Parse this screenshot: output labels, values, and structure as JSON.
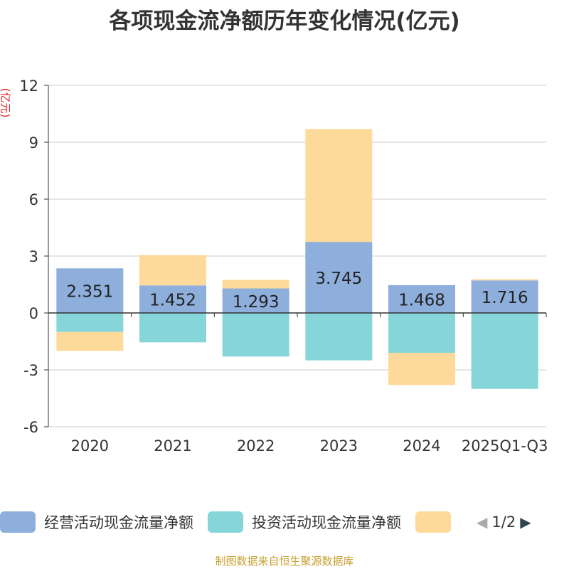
{
  "chart_data": {
    "type": "bar",
    "stacked": true,
    "title": "各项现金流净额历年变化情况(亿元)",
    "ylabel": "(亿元)",
    "xlabel": "",
    "ylim": [
      -6,
      12
    ],
    "yticks": [
      -6,
      -3,
      0,
      3,
      6,
      9,
      12
    ],
    "categories": [
      "2020",
      "2021",
      "2022",
      "2023",
      "2024",
      "2025Q1-Q3"
    ],
    "series": [
      {
        "name": "经营活动现金流量净额",
        "color": "#8eaedb",
        "values": [
          2.351,
          1.452,
          1.293,
          3.745,
          1.468,
          1.716
        ],
        "show_labels": true
      },
      {
        "name": "投资活动现金流量净额",
        "color": "#86d5d8",
        "values": [
          -1.0,
          -1.55,
          -2.3,
          -2.5,
          -2.1,
          -4.0
        ],
        "show_labels": false
      },
      {
        "name": "",
        "color": "#fdd99a",
        "values": [
          -1.0,
          1.6,
          0.45,
          5.95,
          -1.7,
          0.06
        ],
        "show_labels": false
      }
    ],
    "grid": true,
    "legend_position": "bottom-left"
  },
  "legend": {
    "pager_text": "1/2",
    "prev_color": "#aaaaaa",
    "next_color": "#2f4554"
  },
  "source_note": "制图数据来自恒生聚源数据库"
}
